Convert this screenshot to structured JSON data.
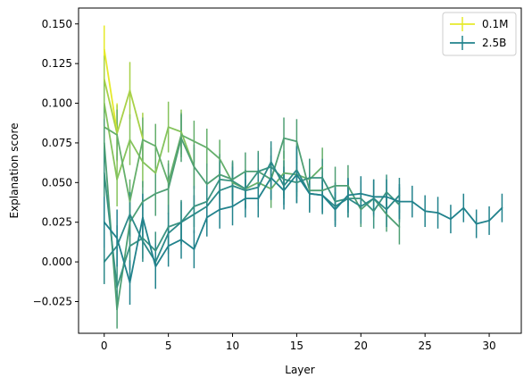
{
  "chart_data": {
    "type": "line",
    "title": "",
    "xlabel": "Layer",
    "ylabel": "Explanation score",
    "xlim": [
      -2,
      32.5
    ],
    "ylim": [
      -0.045,
      0.16
    ],
    "xticks": [
      0,
      5,
      10,
      15,
      20,
      25,
      30
    ],
    "yticks": [
      -0.025,
      0.0,
      0.025,
      0.05,
      0.075,
      0.1,
      0.125,
      0.15
    ],
    "ytick_labels": [
      "−0.025",
      "0.000",
      "0.025",
      "0.050",
      "0.075",
      "0.100",
      "0.125",
      "0.150"
    ],
    "grid": false,
    "legend_position": "upper right",
    "legend": [
      {
        "label": "0.1M",
        "color": "#e6ea2b"
      },
      {
        "label": "2.5B",
        "color": "#21828c"
      }
    ],
    "series": [
      {
        "name": "0.1M",
        "color": "#e6ea2b",
        "y": [
          0.134,
          0.082
        ],
        "err": [
          0.015,
          0.018
        ]
      },
      {
        "color": "#a8d148",
        "y": [
          0.115,
          0.081,
          0.108,
          0.078
        ],
        "err": [
          0.015,
          0.018,
          0.018,
          0.016
        ]
      },
      {
        "color": "#85c35c",
        "y": [
          0.1,
          0.052,
          0.077,
          0.063,
          0.056,
          0.085,
          0.082,
          0.06
        ],
        "err": [
          0.015,
          0.017,
          0.016,
          0.016,
          0.015,
          0.016,
          0.014,
          0.012
        ]
      },
      {
        "color": "#65af6b",
        "y": [
          0.085,
          0.08,
          0.038,
          0.077,
          0.073,
          0.05,
          0.08,
          0.076,
          0.072,
          0.065,
          0.05,
          0.046,
          0.05,
          0.046,
          0.056,
          0.055,
          0.052,
          0.06
        ],
        "err": [
          0.014,
          0.016,
          0.014,
          0.014,
          0.014,
          0.014,
          0.014,
          0.013,
          0.012,
          0.012,
          0.012,
          0.012,
          0.012,
          0.012,
          0.014,
          0.014,
          0.013,
          0.012
        ]
      },
      {
        "color": "#4f9f74",
        "y": [
          0.075,
          -0.03,
          0.025,
          0.038,
          0.043,
          0.046,
          0.078,
          0.06,
          0.049,
          0.055,
          0.052,
          0.057,
          0.057,
          0.052,
          0.078,
          0.076,
          0.045,
          0.045,
          0.048,
          0.048,
          0.033,
          0.04,
          0.03,
          0.022
        ],
        "err": [
          0.015,
          0.012,
          0.014,
          0.013,
          0.014,
          0.016,
          0.015,
          0.014,
          0.013,
          0.013,
          0.012,
          0.012,
          0.013,
          0.012,
          0.013,
          0.014,
          0.012,
          0.012,
          0.012,
          0.013,
          0.011,
          0.012,
          0.011,
          0.011
        ]
      },
      {
        "color": "#3a9381",
        "y": [
          0.056,
          -0.016,
          0.01,
          0.015,
          0.007,
          0.022,
          0.025,
          0.035,
          0.038,
          0.052,
          0.051,
          0.046,
          0.057,
          0.06,
          0.052,
          0.05,
          0.053,
          0.053,
          0.038,
          0.04,
          0.04,
          0.032,
          0.044,
          0.036
        ],
        "err": [
          0.016,
          0.013,
          0.015,
          0.013,
          0.012,
          0.014,
          0.014,
          0.013,
          0.013,
          0.013,
          0.012,
          0.012,
          0.012,
          0.012,
          0.012,
          0.013,
          0.012,
          0.012,
          0.012,
          0.012,
          0.011,
          0.011,
          0.011,
          0.011
        ]
      },
      {
        "color": "#2d8a89",
        "y": [
          0.0,
          0.01,
          0.03,
          0.013,
          0.0,
          0.018,
          0.025,
          0.03,
          0.035,
          0.045,
          0.048,
          0.045,
          0.047,
          0.063,
          0.048,
          0.058,
          0.043,
          0.042,
          0.035,
          0.04,
          0.035,
          0.04,
          0.033,
          0.042
        ],
        "err": [
          0.014,
          0.013,
          0.014,
          0.013,
          0.012,
          0.013,
          0.013,
          0.012,
          0.013,
          0.012,
          0.012,
          0.012,
          0.012,
          0.013,
          0.012,
          0.014,
          0.012,
          0.012,
          0.012,
          0.012,
          0.011,
          0.011,
          0.011,
          0.011
        ]
      },
      {
        "name": "2.5B",
        "color": "#21828c",
        "y": [
          0.025,
          0.015,
          -0.013,
          0.028,
          -0.003,
          0.01,
          0.014,
          0.008,
          0.028,
          0.033,
          0.035,
          0.04,
          0.04,
          0.053,
          0.045,
          0.055,
          0.043,
          0.042,
          0.033,
          0.042,
          0.043,
          0.041,
          0.041,
          0.038,
          0.038,
          0.032,
          0.031,
          0.027,
          0.034,
          0.024,
          0.026,
          0.034
        ],
        "err": [
          0.016,
          0.018,
          0.014,
          0.015,
          0.014,
          0.013,
          0.012,
          0.012,
          0.012,
          0.012,
          0.012,
          0.012,
          0.012,
          0.014,
          0.012,
          0.018,
          0.011,
          0.011,
          0.011,
          0.011,
          0.011,
          0.011,
          0.011,
          0.011,
          0.01,
          0.01,
          0.01,
          0.009,
          0.009,
          0.009,
          0.009,
          0.009
        ]
      }
    ]
  }
}
